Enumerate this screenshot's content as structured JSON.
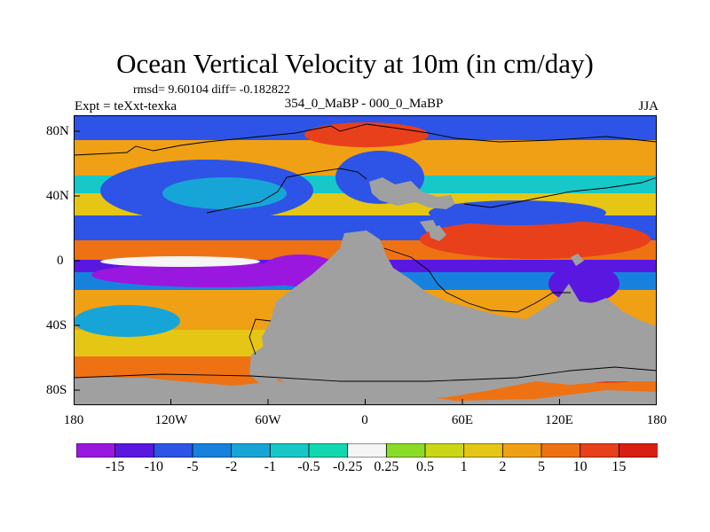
{
  "title": "Ocean Vertical Velocity at 10m (in cm/day)",
  "stats": "rmsd= 9.60104 diff= -0.182822",
  "experiment": "Expt = teXxt-texka",
  "subtitle": "354_0_MaBP - 000_0_MaBP",
  "season": "JJA",
  "map": {
    "lat_ticks": [
      "80N",
      "40N",
      "0",
      "40S",
      "80S"
    ],
    "lon_ticks": [
      "180",
      "120W",
      "60W",
      "0",
      "60E",
      "120E",
      "180"
    ],
    "land_color": "#a0a0a0"
  },
  "colorbar": {
    "levels": [
      "-15",
      "-10",
      "-5",
      "-2",
      "-1",
      "-0.5",
      "-0.25",
      "0.25",
      "0.5",
      "1",
      "2",
      "5",
      "10",
      "15"
    ],
    "colors": [
      "#9a17e0",
      "#5a17e0",
      "#2d54e6",
      "#1782de",
      "#17a5d8",
      "#17c8c8",
      "#12d8b0",
      "#f5f5f5",
      "#8adc28",
      "#cbd616",
      "#e6c614",
      "#f0a014",
      "#ee7214",
      "#e8401b",
      "#d91e12"
    ]
  }
}
